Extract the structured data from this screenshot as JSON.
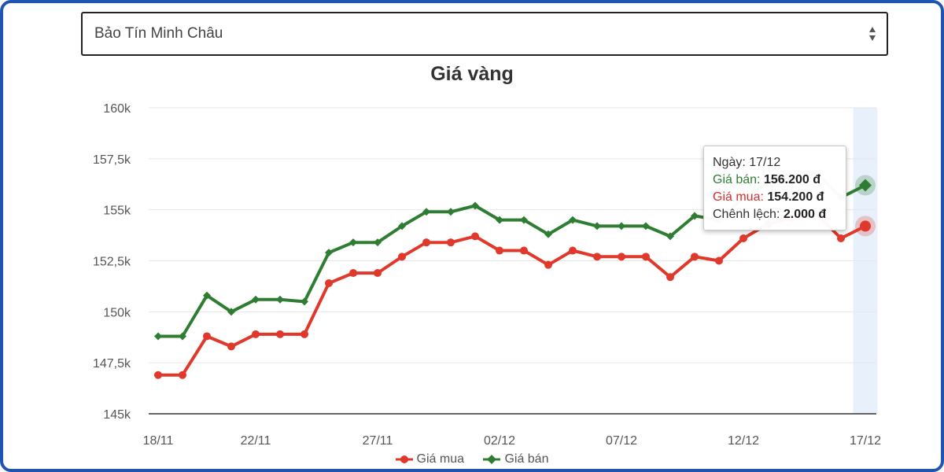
{
  "select": {
    "value": "Bảo Tín Minh Châu"
  },
  "chart_data": {
    "type": "line",
    "title": "Giá vàng",
    "xlabel": "",
    "ylabel": "",
    "x_tick_labels": [
      "18/11",
      "22/11",
      "27/11",
      "02/12",
      "07/12",
      "12/12",
      "17/12"
    ],
    "y_tick_labels": [
      "145k",
      "147,5k",
      "150k",
      "152,5k",
      "155k",
      "157,5k",
      "160k"
    ],
    "y_ticks": [
      145,
      147.5,
      150,
      152.5,
      155,
      157.5,
      160
    ],
    "ylim": [
      145,
      160
    ],
    "grid": true,
    "legend": "bottom",
    "categories": [
      "18/11",
      "19/11",
      "20/11",
      "21/11",
      "22/11",
      "23/11",
      "24/11",
      "25/11",
      "26/11",
      "27/11",
      "28/11",
      "29/11",
      "30/11",
      "01/12",
      "02/12",
      "03/12",
      "04/12",
      "05/12",
      "06/12",
      "07/12",
      "08/12",
      "09/12",
      "10/12",
      "11/12",
      "12/12",
      "13/12",
      "14/12",
      "15/12",
      "16/12",
      "17/12"
    ],
    "series": [
      {
        "name": "Giá mua",
        "color": "#e0392b",
        "marker": "circle",
        "values": [
          146.9,
          146.9,
          148.8,
          148.3,
          148.9,
          148.9,
          148.9,
          151.4,
          151.9,
          151.9,
          152.7,
          153.4,
          153.4,
          153.7,
          153.0,
          153.0,
          152.3,
          153.0,
          152.7,
          152.7,
          152.7,
          151.7,
          152.7,
          152.5,
          153.6,
          154.3,
          154.6,
          154.8,
          153.6,
          154.2
        ]
      },
      {
        "name": "Giá bán",
        "color": "#2e7d32",
        "marker": "diamond",
        "values": [
          148.8,
          148.8,
          150.8,
          150.0,
          150.6,
          150.6,
          150.5,
          152.9,
          153.4,
          153.4,
          154.2,
          154.9,
          154.9,
          155.2,
          154.5,
          154.5,
          153.8,
          154.5,
          154.2,
          154.2,
          154.2,
          153.7,
          154.7,
          154.5,
          155.6,
          156.3,
          156.6,
          156.8,
          155.6,
          156.2
        ]
      }
    ],
    "highlight_index": 29,
    "tooltip": {
      "date_label": "Ngày:",
      "date": "17/12",
      "sell_label": "Giá bán:",
      "sell_value": "156.200 đ",
      "buy_label": "Giá mua:",
      "buy_value": "154.200 đ",
      "diff_label": "Chênh lệch:",
      "diff_value": "2.000 đ"
    }
  }
}
